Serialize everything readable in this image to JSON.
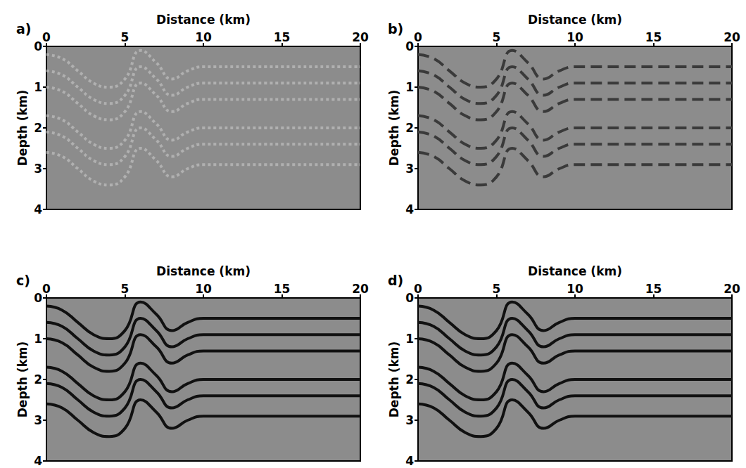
{
  "chart_data": [
    {
      "type": "line",
      "title": "a)",
      "x_label": "Distance (km)",
      "y_label": "Depth (km)",
      "xlim": [
        0,
        20
      ],
      "xticks": [
        0,
        5,
        10,
        15,
        20
      ],
      "ylim": [
        4,
        0
      ],
      "yticks": [
        0,
        1,
        2,
        3,
        4
      ],
      "grid": false,
      "x": [
        0,
        1,
        2,
        3,
        4,
        5,
        6,
        7,
        8,
        9,
        10,
        11,
        12,
        13,
        14,
        15,
        16,
        17,
        18,
        19,
        20
      ],
      "series": [
        {
          "color": "#b0b0b0",
          "line_style": "dotted",
          "values": [
            0.2,
            0.3,
            0.6,
            0.9,
            1.0,
            0.8,
            0.1,
            0.4,
            0.8,
            0.6,
            0.5,
            0.5,
            0.5,
            0.5,
            0.5,
            0.5,
            0.5,
            0.5,
            0.5,
            0.5,
            0.5
          ]
        },
        {
          "color": "#b0b0b0",
          "line_style": "dotted",
          "values": [
            0.6,
            0.7,
            1.0,
            1.3,
            1.4,
            1.2,
            0.5,
            0.8,
            1.2,
            1.0,
            0.9,
            0.9,
            0.9,
            0.9,
            0.9,
            0.9,
            0.9,
            0.9,
            0.9,
            0.9,
            0.9
          ]
        },
        {
          "color": "#b0b0b0",
          "line_style": "dotted",
          "values": [
            1.0,
            1.1,
            1.4,
            1.7,
            1.8,
            1.6,
            0.9,
            1.2,
            1.6,
            1.4,
            1.3,
            1.3,
            1.3,
            1.3,
            1.3,
            1.3,
            1.3,
            1.3,
            1.3,
            1.3,
            1.3
          ]
        },
        {
          "color": "#b0b0b0",
          "line_style": "dotted",
          "values": [
            1.7,
            1.8,
            2.1,
            2.4,
            2.5,
            2.3,
            1.6,
            1.9,
            2.3,
            2.1,
            2.0,
            2.0,
            2.0,
            2.0,
            2.0,
            2.0,
            2.0,
            2.0,
            2.0,
            2.0,
            2.0
          ]
        },
        {
          "color": "#b0b0b0",
          "line_style": "dotted",
          "values": [
            2.1,
            2.2,
            2.5,
            2.8,
            2.9,
            2.7,
            2.0,
            2.3,
            2.7,
            2.5,
            2.4,
            2.4,
            2.4,
            2.4,
            2.4,
            2.4,
            2.4,
            2.4,
            2.4,
            2.4,
            2.4
          ]
        },
        {
          "color": "#b0b0b0",
          "line_style": "dotted",
          "values": [
            2.6,
            2.7,
            3.0,
            3.3,
            3.4,
            3.2,
            2.5,
            2.8,
            3.2,
            3.0,
            2.9,
            2.9,
            2.9,
            2.9,
            2.9,
            2.9,
            2.9,
            2.9,
            2.9,
            2.9,
            2.9
          ]
        }
      ]
    },
    {
      "type": "line",
      "title": "b)",
      "x_label": "Distance (km)",
      "y_label": "Depth (km)",
      "xlim": [
        0,
        20
      ],
      "xticks": [
        0,
        5,
        10,
        15,
        20
      ],
      "ylim": [
        4,
        0
      ],
      "yticks": [
        0,
        1,
        2,
        3,
        4
      ],
      "grid": false,
      "x": [
        0,
        1,
        2,
        3,
        4,
        5,
        6,
        7,
        8,
        9,
        10,
        11,
        12,
        13,
        14,
        15,
        16,
        17,
        18,
        19,
        20
      ],
      "series": [
        {
          "color": "#3a3a3a",
          "line_style": "dashed",
          "values": [
            0.2,
            0.3,
            0.6,
            0.9,
            1.0,
            0.8,
            0.1,
            0.4,
            0.8,
            0.6,
            0.5,
            0.5,
            0.5,
            0.5,
            0.5,
            0.5,
            0.5,
            0.5,
            0.5,
            0.5,
            0.5
          ]
        },
        {
          "color": "#3a3a3a",
          "line_style": "dashed",
          "values": [
            0.6,
            0.7,
            1.0,
            1.3,
            1.4,
            1.2,
            0.5,
            0.8,
            1.2,
            1.0,
            0.9,
            0.9,
            0.9,
            0.9,
            0.9,
            0.9,
            0.9,
            0.9,
            0.9,
            0.9,
            0.9
          ]
        },
        {
          "color": "#3a3a3a",
          "line_style": "dashed",
          "values": [
            1.0,
            1.1,
            1.4,
            1.7,
            1.8,
            1.6,
            0.9,
            1.2,
            1.6,
            1.4,
            1.3,
            1.3,
            1.3,
            1.3,
            1.3,
            1.3,
            1.3,
            1.3,
            1.3,
            1.3,
            1.3
          ]
        },
        {
          "color": "#3a3a3a",
          "line_style": "dashed",
          "values": [
            1.7,
            1.8,
            2.1,
            2.4,
            2.5,
            2.3,
            1.6,
            1.9,
            2.3,
            2.1,
            2.0,
            2.0,
            2.0,
            2.0,
            2.0,
            2.0,
            2.0,
            2.0,
            2.0,
            2.0,
            2.0
          ]
        },
        {
          "color": "#3a3a3a",
          "line_style": "dashed",
          "values": [
            2.1,
            2.2,
            2.5,
            2.8,
            2.9,
            2.7,
            2.0,
            2.3,
            2.7,
            2.5,
            2.4,
            2.4,
            2.4,
            2.4,
            2.4,
            2.4,
            2.4,
            2.4,
            2.4,
            2.4,
            2.4
          ]
        },
        {
          "color": "#3a3a3a",
          "line_style": "dashed",
          "values": [
            2.6,
            2.7,
            3.0,
            3.3,
            3.4,
            3.2,
            2.5,
            2.8,
            3.2,
            3.0,
            2.9,
            2.9,
            2.9,
            2.9,
            2.9,
            2.9,
            2.9,
            2.9,
            2.9,
            2.9,
            2.9
          ]
        }
      ]
    },
    {
      "type": "line",
      "title": "c)",
      "x_label": "Distance (km)",
      "y_label": "Depth (km)",
      "xlim": [
        0,
        20
      ],
      "xticks": [
        0,
        5,
        10,
        15,
        20
      ],
      "ylim": [
        4,
        0
      ],
      "yticks": [
        0,
        1,
        2,
        3,
        4
      ],
      "grid": false,
      "x": [
        0,
        1,
        2,
        3,
        4,
        5,
        6,
        7,
        8,
        9,
        10,
        11,
        12,
        13,
        14,
        15,
        16,
        17,
        18,
        19,
        20
      ],
      "series": [
        {
          "color": "#111111",
          "line_style": "solid",
          "values": [
            0.2,
            0.3,
            0.6,
            0.9,
            1.0,
            0.8,
            0.1,
            0.4,
            0.8,
            0.6,
            0.5,
            0.5,
            0.5,
            0.5,
            0.5,
            0.5,
            0.5,
            0.5,
            0.5,
            0.5,
            0.5
          ]
        },
        {
          "color": "#111111",
          "line_style": "solid",
          "values": [
            0.6,
            0.7,
            1.0,
            1.3,
            1.4,
            1.2,
            0.5,
            0.8,
            1.2,
            1.0,
            0.9,
            0.9,
            0.9,
            0.9,
            0.9,
            0.9,
            0.9,
            0.9,
            0.9,
            0.9,
            0.9
          ]
        },
        {
          "color": "#111111",
          "line_style": "solid",
          "values": [
            1.0,
            1.1,
            1.4,
            1.7,
            1.8,
            1.6,
            0.9,
            1.2,
            1.6,
            1.4,
            1.3,
            1.3,
            1.3,
            1.3,
            1.3,
            1.3,
            1.3,
            1.3,
            1.3,
            1.3,
            1.3
          ]
        },
        {
          "color": "#111111",
          "line_style": "solid",
          "values": [
            1.7,
            1.8,
            2.1,
            2.4,
            2.5,
            2.3,
            1.6,
            1.9,
            2.3,
            2.1,
            2.0,
            2.0,
            2.0,
            2.0,
            2.0,
            2.0,
            2.0,
            2.0,
            2.0,
            2.0,
            2.0
          ]
        },
        {
          "color": "#111111",
          "line_style": "solid",
          "values": [
            2.1,
            2.2,
            2.5,
            2.8,
            2.9,
            2.7,
            2.0,
            2.3,
            2.7,
            2.5,
            2.4,
            2.4,
            2.4,
            2.4,
            2.4,
            2.4,
            2.4,
            2.4,
            2.4,
            2.4,
            2.4
          ]
        },
        {
          "color": "#111111",
          "line_style": "solid",
          "values": [
            2.6,
            2.7,
            3.0,
            3.3,
            3.4,
            3.2,
            2.5,
            2.8,
            3.2,
            3.0,
            2.9,
            2.9,
            2.9,
            2.9,
            2.9,
            2.9,
            2.9,
            2.9,
            2.9,
            2.9,
            2.9
          ]
        }
      ]
    },
    {
      "type": "line",
      "title": "d)",
      "x_label": "Distance (km)",
      "y_label": "Depth (km)",
      "xlim": [
        0,
        20
      ],
      "xticks": [
        0,
        5,
        10,
        15,
        20
      ],
      "ylim": [
        4,
        0
      ],
      "yticks": [
        0,
        1,
        2,
        3,
        4
      ],
      "grid": false,
      "x": [
        0,
        1,
        2,
        3,
        4,
        5,
        6,
        7,
        8,
        9,
        10,
        11,
        12,
        13,
        14,
        15,
        16,
        17,
        18,
        19,
        20
      ],
      "series": [
        {
          "color": "#111111",
          "line_style": "solid",
          "values": [
            0.2,
            0.3,
            0.6,
            0.9,
            1.0,
            0.8,
            0.1,
            0.4,
            0.8,
            0.6,
            0.5,
            0.5,
            0.5,
            0.5,
            0.5,
            0.5,
            0.5,
            0.5,
            0.5,
            0.5,
            0.5
          ]
        },
        {
          "color": "#111111",
          "line_style": "solid",
          "values": [
            0.6,
            0.7,
            1.0,
            1.3,
            1.4,
            1.2,
            0.5,
            0.8,
            1.2,
            1.0,
            0.9,
            0.9,
            0.9,
            0.9,
            0.9,
            0.9,
            0.9,
            0.9,
            0.9,
            0.9,
            0.9
          ]
        },
        {
          "color": "#111111",
          "line_style": "solid",
          "values": [
            1.0,
            1.1,
            1.4,
            1.7,
            1.8,
            1.6,
            0.9,
            1.2,
            1.6,
            1.4,
            1.3,
            1.3,
            1.3,
            1.3,
            1.3,
            1.3,
            1.3,
            1.3,
            1.3,
            1.3,
            1.3
          ]
        },
        {
          "color": "#111111",
          "line_style": "solid",
          "values": [
            1.7,
            1.8,
            2.1,
            2.4,
            2.5,
            2.3,
            1.6,
            1.9,
            2.3,
            2.1,
            2.0,
            2.0,
            2.0,
            2.0,
            2.0,
            2.0,
            2.0,
            2.0,
            2.0,
            2.0,
            2.0
          ]
        },
        {
          "color": "#111111",
          "line_style": "solid",
          "values": [
            2.1,
            2.2,
            2.5,
            2.8,
            2.9,
            2.7,
            2.0,
            2.3,
            2.7,
            2.5,
            2.4,
            2.4,
            2.4,
            2.4,
            2.4,
            2.4,
            2.4,
            2.4,
            2.4,
            2.4,
            2.4
          ]
        },
        {
          "color": "#111111",
          "line_style": "solid",
          "values": [
            2.6,
            2.7,
            3.0,
            3.3,
            3.4,
            3.2,
            2.5,
            2.8,
            3.2,
            3.0,
            2.9,
            2.9,
            2.9,
            2.9,
            2.9,
            2.9,
            2.9,
            2.9,
            2.9,
            2.9,
            2.9
          ]
        }
      ]
    }
  ]
}
